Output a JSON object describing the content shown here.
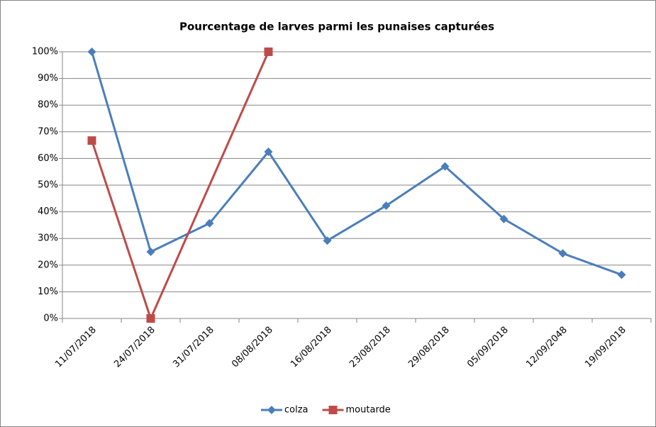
{
  "chart_data": {
    "type": "line",
    "title": "Pourcentage de larves parmi les punaises capturées",
    "categories": [
      "11/07/2018",
      "24/07/2018",
      "31/07/2018",
      "08/08/2018",
      "16/08/2018",
      "23/08/2018",
      "29/08/2018",
      "05/09/2018",
      "12/09/2048",
      "19/09/2018"
    ],
    "series": [
      {
        "name": "colza",
        "color": "#4a7ebb",
        "marker": "diamond",
        "values": [
          100,
          25,
          35.7,
          62.5,
          29.2,
          42.3,
          57,
          37.3,
          24.4,
          16.4
        ]
      },
      {
        "name": "moutarde",
        "color": "#be4b48",
        "marker": "square",
        "values": [
          66.7,
          0,
          null,
          100,
          null,
          null,
          null,
          null,
          null,
          null
        ]
      }
    ],
    "ylim": [
      0,
      100
    ],
    "yticks": [
      {
        "value": 0,
        "label": "0%"
      },
      {
        "value": 10,
        "label": "10%"
      },
      {
        "value": 20,
        "label": "20%"
      },
      {
        "value": 30,
        "label": "30%"
      },
      {
        "value": 40,
        "label": "40%"
      },
      {
        "value": 50,
        "label": "50%"
      },
      {
        "value": 60,
        "label": "60%"
      },
      {
        "value": 70,
        "label": "70%"
      },
      {
        "value": 80,
        "label": "80%"
      },
      {
        "value": 90,
        "label": "90%"
      },
      {
        "value": 100,
        "label": "100%"
      }
    ],
    "grid": true,
    "span_gaps": true,
    "legend": "bottom"
  }
}
